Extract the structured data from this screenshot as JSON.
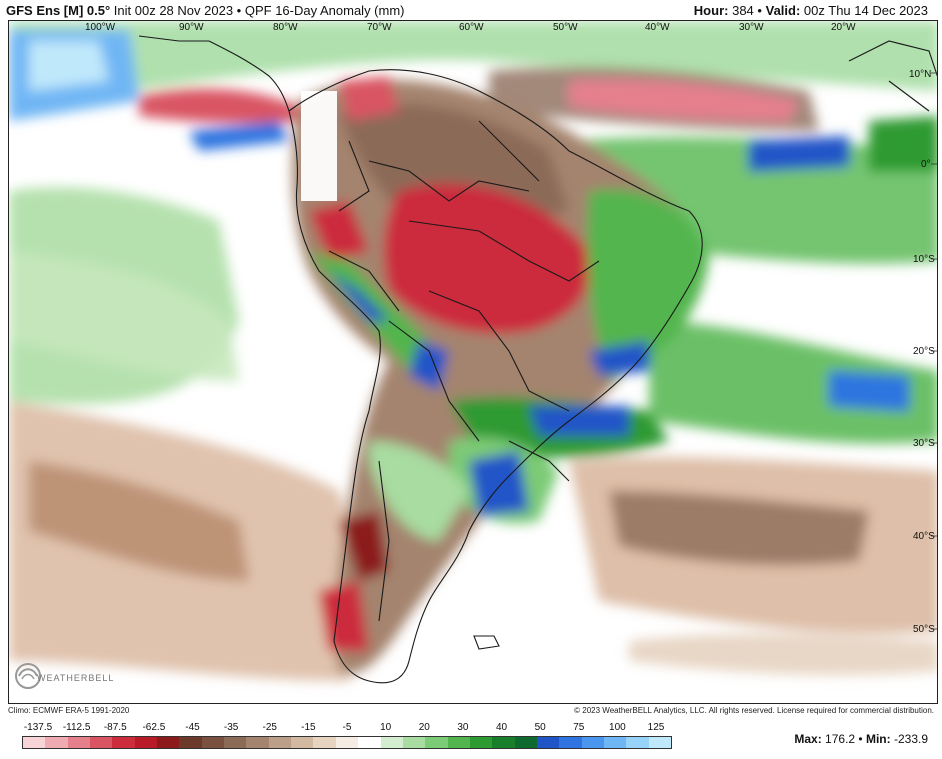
{
  "header": {
    "model": "GFS Ens [M] 0.5°",
    "init": "Init 00z 28 Nov 2023",
    "separator": "•",
    "product": "QPF 16-Day Anomaly (mm)",
    "hour_label": "Hour:",
    "hour_value": "384",
    "valid_label": "Valid:",
    "valid_value": "00z Thu 14 Dec 2023"
  },
  "map": {
    "lon_labels": [
      "100°W",
      "90°W",
      "80°W",
      "70°W",
      "60°W",
      "50°W",
      "40°W",
      "30°W",
      "20°W"
    ],
    "lat_labels": [
      "10°N",
      "0°",
      "10°S",
      "20°S",
      "30°S",
      "40°S",
      "50°S"
    ],
    "logo_text": "WEATHERBELL"
  },
  "footer": {
    "climo": "Climo: ECMWF ERA-5 1991-2020",
    "copyright": "© 2023 WeatherBELL Analytics, LLC. All rights reserved. License required for commercial distribution."
  },
  "colorbar": {
    "labels": [
      "-137.5",
      "-112.5",
      "-87.5",
      "-62.5",
      "-45",
      "-35",
      "-25",
      "-15",
      "-5",
      "10",
      "20",
      "30",
      "40",
      "50",
      "75",
      "100",
      "125"
    ],
    "colors": [
      "#f7d4d8",
      "#f0aab2",
      "#e57f8c",
      "#d95563",
      "#cc2c3c",
      "#b81a27",
      "#8c1a1a",
      "#6b3a2a",
      "#7a5040",
      "#8c6a58",
      "#a4846e",
      "#bc9f88",
      "#d2b9a2",
      "#e6d3c0",
      "#f5ece3",
      "#ffffff",
      "#d4ecd0",
      "#a8dca0",
      "#7ccb76",
      "#52b54e",
      "#2e9a32",
      "#1a7f2a",
      "#0f6a30",
      "#2055c8",
      "#2f74e0",
      "#4a95ee",
      "#6fb6f4",
      "#97d2f8",
      "#c0e8fb"
    ]
  },
  "stats": {
    "max_label": "Max:",
    "max_value": "176.2",
    "separator": "•",
    "min_label": "Min:",
    "min_value": "-233.9"
  }
}
